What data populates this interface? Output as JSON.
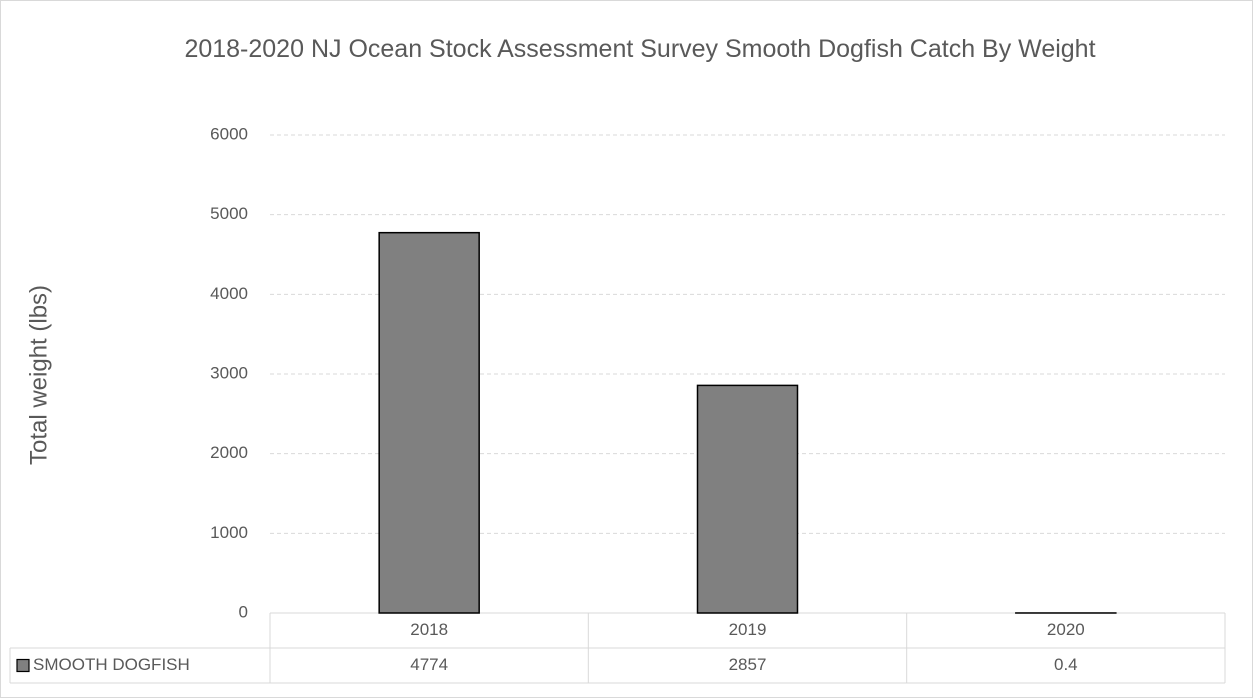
{
  "chart_data": {
    "type": "bar",
    "title": "2018-2020 NJ Ocean Stock Assessment Survey Smooth Dogfish Catch By Weight",
    "y_label": "Total weight (lbs)",
    "categories": [
      "2018",
      "2019",
      "2020"
    ],
    "series": [
      {
        "name": "SMOOTH DOGFISH",
        "color": "#808080",
        "values": [
          4774,
          2857,
          0.4
        ]
      }
    ],
    "ylim": [
      0,
      6000
    ],
    "yticks": [
      0,
      1000,
      2000,
      3000,
      4000,
      5000,
      6000
    ],
    "grid": true,
    "data_table": true
  }
}
